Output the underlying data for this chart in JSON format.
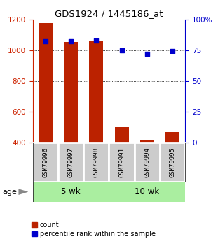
{
  "title": "GDS1924 / 1445186_at",
  "samples": [
    "GSM79996",
    "GSM79997",
    "GSM79998",
    "GSM79991",
    "GSM79994",
    "GSM79995"
  ],
  "count_values": [
    1175,
    1052,
    1060,
    500,
    415,
    465
  ],
  "percentile_values": [
    82,
    82,
    83,
    75,
    72,
    74
  ],
  "ylim_left": [
    400,
    1200
  ],
  "ylim_right": [
    0,
    100
  ],
  "yticks_left": [
    400,
    600,
    800,
    1000,
    1200
  ],
  "yticks_right": [
    0,
    25,
    50,
    75,
    100
  ],
  "ytick_labels_right": [
    "0",
    "25",
    "50",
    "75",
    "100%"
  ],
  "bar_color": "#bb2200",
  "dot_color": "#0000cc",
  "group1_label": "5 wk",
  "group2_label": "10 wk",
  "group_color": "#aaeea0",
  "age_label": "age",
  "legend_count": "count",
  "legend_percentile": "percentile rank within the sample",
  "bar_width": 0.55,
  "axis_label_color_left": "#cc2200",
  "axis_label_color_right": "#0000cc",
  "grid_color": "#000000",
  "sample_bg_color": "#cccccc",
  "arrow_color": "#888888"
}
